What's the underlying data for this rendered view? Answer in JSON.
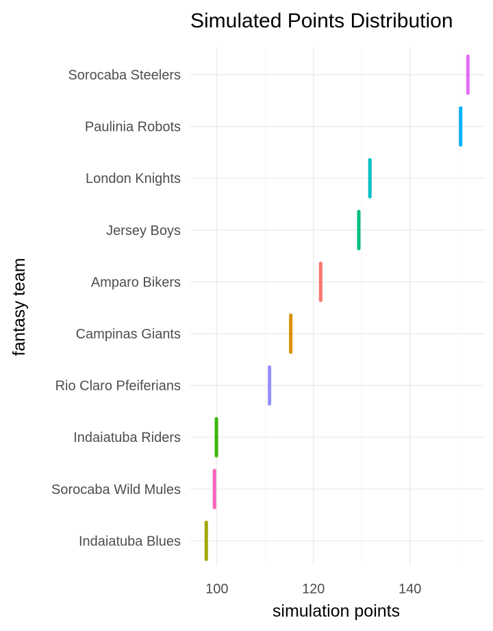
{
  "chart_data": {
    "type": "boxplot",
    "title": "Simulated Points Distribution",
    "xlabel": "simulation points",
    "ylabel": "fantasy team",
    "xlim": [
      94.5,
      155.5
    ],
    "x_ticks": [
      100,
      120,
      140
    ],
    "grid": true,
    "legend": "none",
    "categories": [
      "Sorocaba Steelers",
      "Paulinia Robots",
      "London Knights",
      "Jersey Boys",
      "Amparo Bikers",
      "Campinas Giants",
      "Rio Claro Pfeiferians",
      "Indaiatuba Riders",
      "Sorocaba Wild Mules",
      "Indaiatuba Blues"
    ],
    "values": [
      152.0,
      150.5,
      131.7,
      129.4,
      121.5,
      115.3,
      110.9,
      99.9,
      99.5,
      97.8
    ],
    "colors": [
      "#e76bf3",
      "#00b0f6",
      "#00bfc4",
      "#00bf7d",
      "#f8766d",
      "#d89000",
      "#9590ff",
      "#39b600",
      "#ff62bc",
      "#a3a500"
    ]
  }
}
